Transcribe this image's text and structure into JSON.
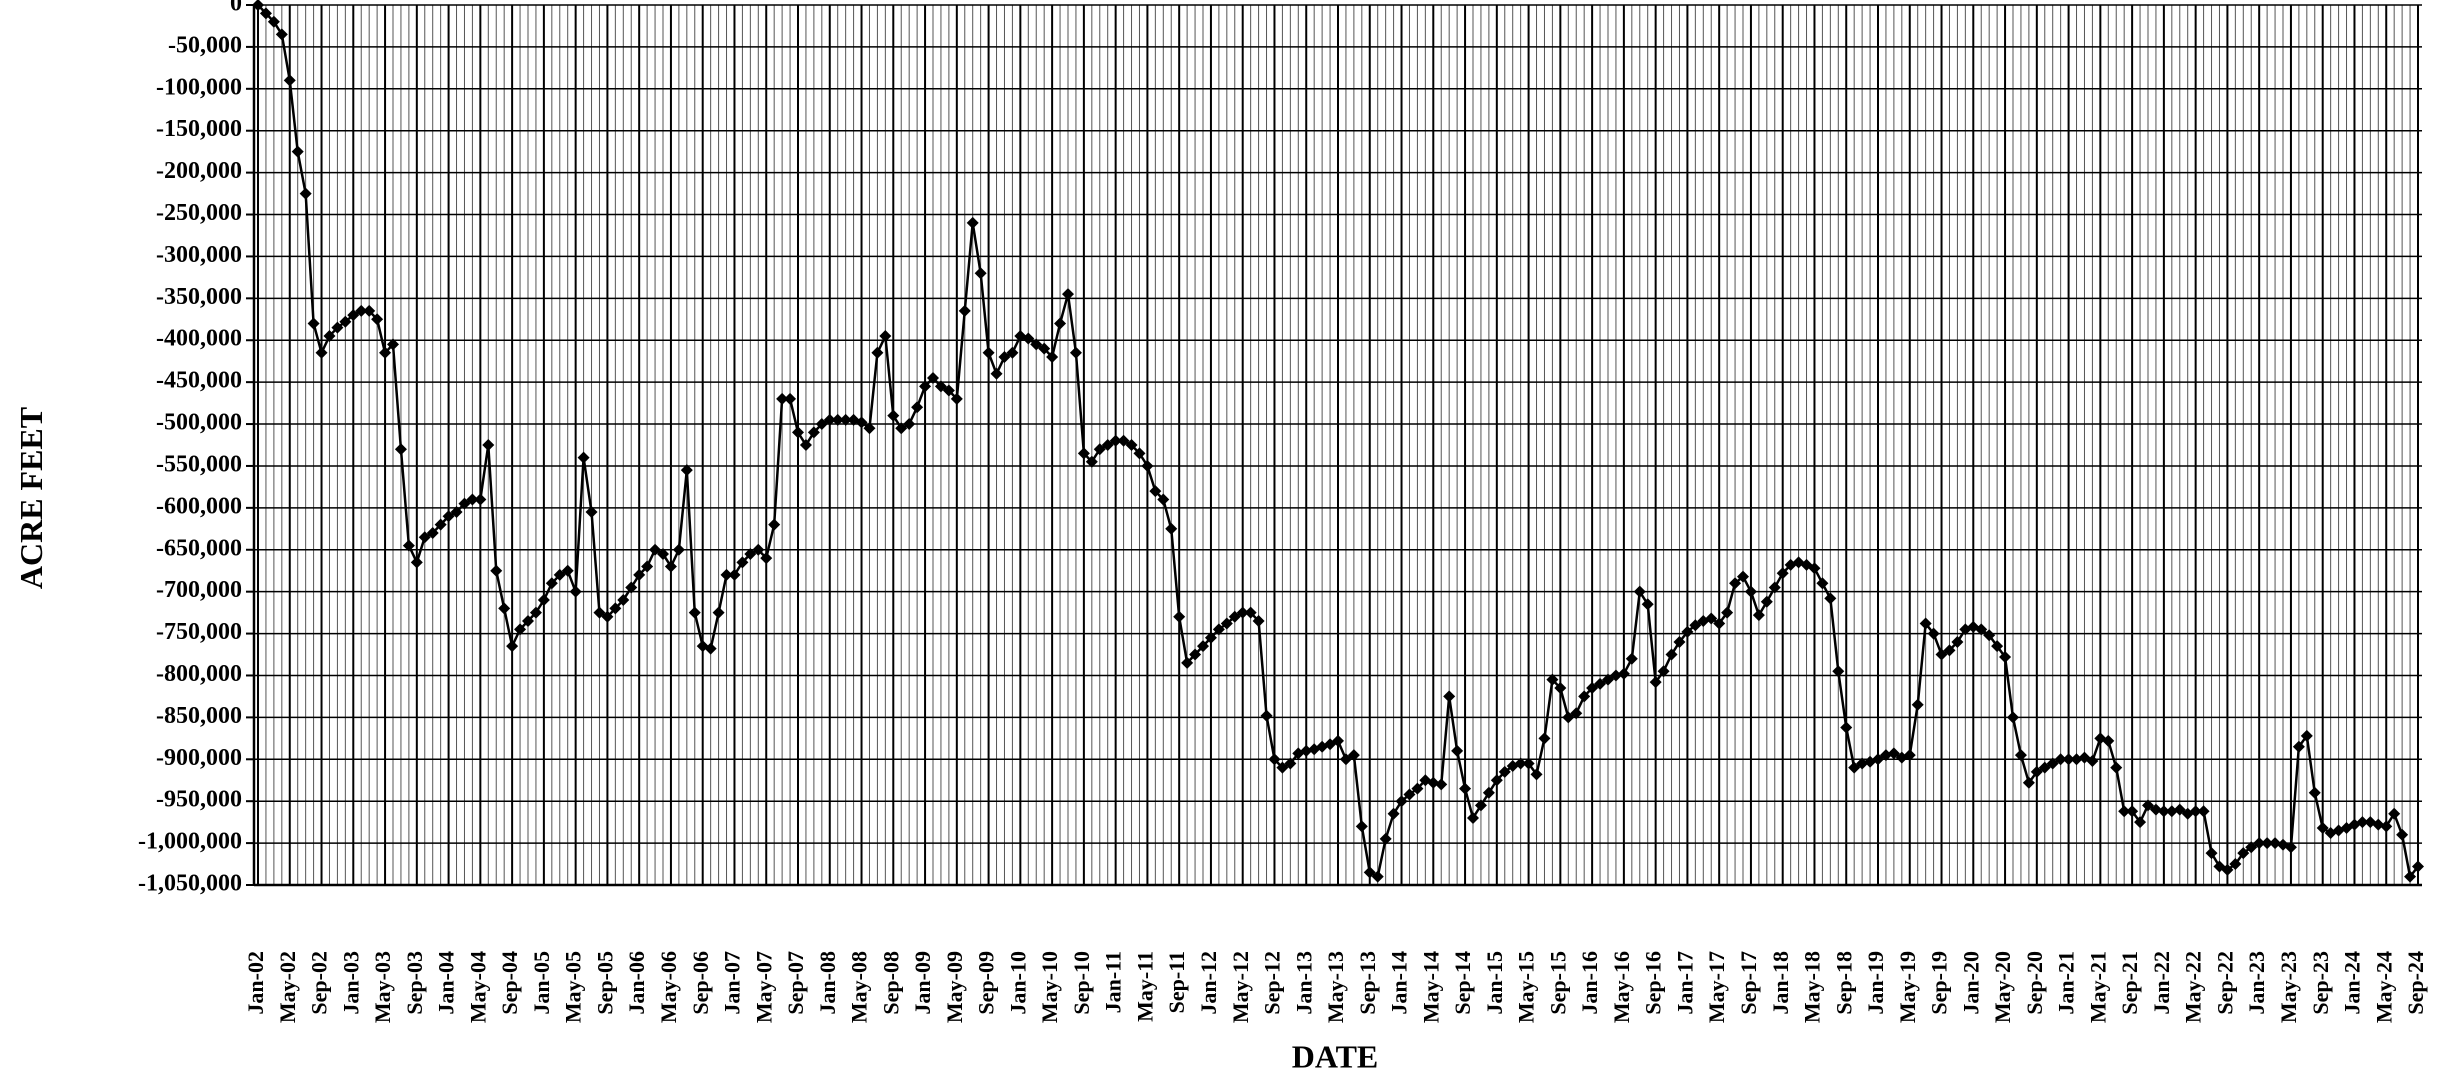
{
  "chart_data": {
    "type": "line",
    "x_label": "DATE",
    "y_label": "ACRE FEET",
    "color": "#000000",
    "grid": true,
    "ylim": [
      -1050000,
      0
    ],
    "yticks": [
      {
        "value": 0,
        "label": "0"
      },
      {
        "value": -50000,
        "label": "-50,000"
      },
      {
        "value": -100000,
        "label": "-100,000"
      },
      {
        "value": -150000,
        "label": "-150,000"
      },
      {
        "value": -200000,
        "label": "-200,000"
      },
      {
        "value": -250000,
        "label": "-250,000"
      },
      {
        "value": -300000,
        "label": "-300,000"
      },
      {
        "value": -350000,
        "label": "-350,000"
      },
      {
        "value": -400000,
        "label": "-400,000"
      },
      {
        "value": -450000,
        "label": "-450,000"
      },
      {
        "value": -500000,
        "label": "-500,000"
      },
      {
        "value": -550000,
        "label": "-550,000"
      },
      {
        "value": -600000,
        "label": "-600,000"
      },
      {
        "value": -650000,
        "label": "-650,000"
      },
      {
        "value": -700000,
        "label": "-700,000"
      },
      {
        "value": -750000,
        "label": "-750,000"
      },
      {
        "value": -800000,
        "label": "-800,000"
      },
      {
        "value": -850000,
        "label": "-850,000"
      },
      {
        "value": -900000,
        "label": "-900,000"
      },
      {
        "value": -950000,
        "label": "-950,000"
      },
      {
        "value": -1000000,
        "label": "-1,000,000"
      },
      {
        "value": -1050000,
        "label": "-1,050,000"
      }
    ],
    "categories": [
      "Jan-02",
      null,
      null,
      null,
      "May-02",
      null,
      null,
      null,
      "Sep-02",
      null,
      null,
      null,
      "Jan-03",
      null,
      null,
      null,
      "May-03",
      null,
      null,
      null,
      "Sep-03",
      null,
      null,
      null,
      "Jan-04",
      null,
      null,
      null,
      "May-04",
      null,
      null,
      null,
      "Sep-04",
      null,
      null,
      null,
      "Jan-05",
      null,
      null,
      null,
      "May-05",
      null,
      null,
      null,
      "Sep-05",
      null,
      null,
      null,
      "Jan-06",
      null,
      null,
      null,
      "May-06",
      null,
      null,
      null,
      "Sep-06",
      null,
      null,
      null,
      "Jan-07",
      null,
      null,
      null,
      "May-07",
      null,
      null,
      null,
      "Sep-07",
      null,
      null,
      null,
      "Jan-08",
      null,
      null,
      null,
      "May-08",
      null,
      null,
      null,
      "Sep-08",
      null,
      null,
      null,
      "Jan-09",
      null,
      null,
      null,
      "May-09",
      null,
      null,
      null,
      "Sep-09",
      null,
      null,
      null,
      "Jan-10",
      null,
      null,
      null,
      "May-10",
      null,
      null,
      null,
      "Sep-10",
      null,
      null,
      null,
      "Jan-11",
      null,
      null,
      null,
      "May-11",
      null,
      null,
      null,
      "Sep-11",
      null,
      null,
      null,
      "Jan-12",
      null,
      null,
      null,
      "May-12",
      null,
      null,
      null,
      "Sep-12",
      null,
      null,
      null,
      "Jan-13",
      null,
      null,
      null,
      "May-13",
      null,
      null,
      null,
      "Sep-13",
      null,
      null,
      null,
      "Jan-14",
      null,
      null,
      null,
      "May-14",
      null,
      null,
      null,
      "Sep-14",
      null,
      null,
      null,
      "Jan-15",
      null,
      null,
      null,
      "May-15",
      null,
      null,
      null,
      "Sep-15",
      null,
      null,
      null,
      "Jan-16",
      null,
      null,
      null,
      "May-16",
      null,
      null,
      null,
      "Sep-16",
      null,
      null,
      null,
      "Jan-17",
      null,
      null,
      null,
      "May-17",
      null,
      null,
      null,
      "Sep-17",
      null,
      null,
      null,
      "Jan-18",
      null,
      null,
      null,
      "May-18",
      null,
      null,
      null,
      "Sep-18",
      null,
      null,
      null,
      "Jan-19",
      null,
      null,
      null,
      "May-19",
      null,
      null,
      null,
      "Sep-19",
      null,
      null,
      null,
      "Jan-20",
      null,
      null,
      null,
      "May-20",
      null,
      null,
      null,
      "Sep-20",
      null,
      null,
      null,
      "Jan-21",
      null,
      null,
      null,
      "May-21",
      null,
      null,
      null,
      "Sep-21",
      null,
      null,
      null,
      "Jan-22",
      null,
      null,
      null,
      "May-22",
      null,
      null,
      null,
      "Sep-22",
      null,
      null,
      null,
      "Jan-23",
      null,
      null,
      null,
      "May-23",
      null,
      null,
      null,
      "Sep-23",
      null,
      null,
      null,
      "Jan-24",
      null,
      null,
      null,
      "May-24",
      null,
      null,
      null,
      "Sep-24"
    ],
    "values": [
      0,
      -10000,
      -20000,
      -35000,
      -90000,
      -175000,
      -225000,
      -380000,
      -415000,
      -395000,
      -385000,
      -378000,
      -370000,
      -365000,
      -365000,
      -375000,
      -415000,
      -405000,
      -530000,
      -645000,
      -665000,
      -635000,
      -630000,
      -620000,
      -610000,
      -605000,
      -595000,
      -590000,
      -590000,
      -525000,
      -675000,
      -720000,
      -765000,
      -745000,
      -735000,
      -725000,
      -710000,
      -690000,
      -680000,
      -675000,
      -700000,
      -540000,
      -605000,
      -725000,
      -730000,
      -720000,
      -710000,
      -695000,
      -680000,
      -670000,
      -650000,
      -655000,
      -670000,
      -650000,
      -555000,
      -725000,
      -765000,
      -768000,
      -725000,
      -680000,
      -680000,
      -665000,
      -655000,
      -650000,
      -660000,
      -620000,
      -470000,
      -470000,
      -510000,
      -525000,
      -510000,
      -500000,
      -495000,
      -495000,
      -495000,
      -495000,
      -498000,
      -505000,
      -415000,
      -395000,
      -490000,
      -505000,
      -500000,
      -480000,
      -455000,
      -445000,
      -455000,
      -460000,
      -470000,
      -365000,
      -260000,
      -320000,
      -415000,
      -440000,
      -420000,
      -415000,
      -395000,
      -398000,
      -405000,
      -410000,
      -420000,
      -380000,
      -345000,
      -415000,
      -535000,
      -545000,
      -530000,
      -525000,
      -520000,
      -520000,
      -525000,
      -535000,
      -550000,
      -580000,
      -590000,
      -625000,
      -730000,
      -785000,
      -775000,
      -765000,
      -755000,
      -745000,
      -738000,
      -730000,
      -725000,
      -725000,
      -735000,
      -848000,
      -900000,
      -910000,
      -905000,
      -893000,
      -890000,
      -888000,
      -885000,
      -882000,
      -878000,
      -900000,
      -895000,
      -980000,
      -1035000,
      -1040000,
      -995000,
      -965000,
      -950000,
      -942000,
      -935000,
      -925000,
      -928000,
      -930000,
      -825000,
      -890000,
      -935000,
      -970000,
      -955000,
      -940000,
      -925000,
      -915000,
      -908000,
      -905000,
      -905000,
      -918000,
      -875000,
      -805000,
      -815000,
      -850000,
      -845000,
      -825000,
      -815000,
      -810000,
      -805000,
      -800000,
      -798000,
      -780000,
      -700000,
      -715000,
      -808000,
      -795000,
      -775000,
      -760000,
      -748000,
      -740000,
      -735000,
      -732000,
      -738000,
      -725000,
      -690000,
      -682000,
      -700000,
      -728000,
      -712000,
      -695000,
      -678000,
      -668000,
      -665000,
      -668000,
      -672000,
      -690000,
      -708000,
      -795000,
      -862000,
      -910000,
      -905000,
      -903000,
      -900000,
      -895000,
      -893000,
      -898000,
      -895000,
      -835000,
      -738000,
      -750000,
      -775000,
      -770000,
      -760000,
      -745000,
      -742000,
      -745000,
      -752000,
      -765000,
      -778000,
      -850000,
      -895000,
      -928000,
      -915000,
      -910000,
      -905000,
      -900000,
      -900000,
      -900000,
      -898000,
      -902000,
      -875000,
      -878000,
      -910000,
      -962000,
      -962000,
      -975000,
      -955000,
      -960000,
      -962000,
      -962000,
      -960000,
      -965000,
      -962000,
      -962000,
      -1012000,
      -1028000,
      -1032000,
      -1025000,
      -1012000,
      -1005000,
      -1000000,
      -1000000,
      -1000000,
      -1002000,
      -1005000,
      -885000,
      -872000,
      -940000,
      -982000,
      -988000,
      -985000,
      -982000,
      -978000,
      -975000,
      -975000,
      -978000,
      -980000,
      -965000,
      -990000,
      -1040000,
      -1028000
    ]
  }
}
